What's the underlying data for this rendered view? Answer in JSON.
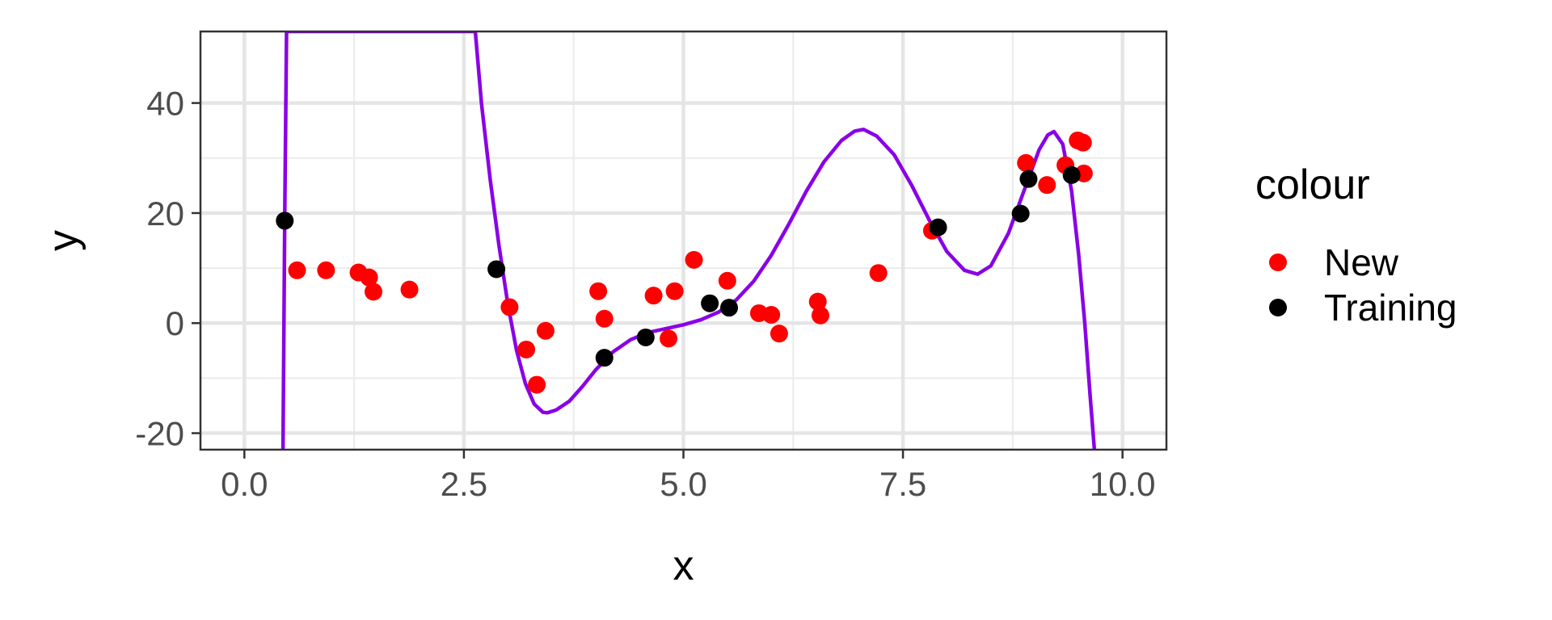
{
  "chart_data": {
    "type": "scatter",
    "title": "",
    "xlabel": "x",
    "ylabel": "y",
    "xlim": [
      -0.5,
      10.5
    ],
    "ylim": [
      -23,
      53
    ],
    "x_ticks": [
      0.0,
      2.5,
      5.0,
      7.5,
      10.0
    ],
    "x_tick_labels": [
      "0.0",
      "2.5",
      "5.0",
      "7.5",
      "10.0"
    ],
    "y_ticks": [
      -20,
      0,
      20,
      40
    ],
    "y_tick_labels": [
      "-20",
      "0",
      "20",
      "40"
    ],
    "grid": true,
    "legend": {
      "title": "colour",
      "position": "right",
      "entries": [
        {
          "label": "New",
          "color": "#ff0000"
        },
        {
          "label": "Training",
          "color": "#000000"
        }
      ]
    },
    "series": [
      {
        "name": "New",
        "color": "#ff0000",
        "points": [
          [
            0.6,
            9.6
          ],
          [
            0.93,
            9.6
          ],
          [
            1.3,
            9.2
          ],
          [
            1.42,
            8.3
          ],
          [
            1.47,
            5.7
          ],
          [
            1.88,
            6.1
          ],
          [
            3.02,
            2.9
          ],
          [
            3.21,
            -4.8
          ],
          [
            3.33,
            -11.2
          ],
          [
            3.43,
            -1.4
          ],
          [
            4.03,
            5.8
          ],
          [
            4.1,
            0.8
          ],
          [
            4.66,
            5.0
          ],
          [
            4.83,
            -2.8
          ],
          [
            4.9,
            5.8
          ],
          [
            5.12,
            11.5
          ],
          [
            5.5,
            7.7
          ],
          [
            5.86,
            1.8
          ],
          [
            6.0,
            1.5
          ],
          [
            6.09,
            -1.9
          ],
          [
            6.53,
            3.9
          ],
          [
            6.56,
            1.4
          ],
          [
            7.22,
            9.1
          ],
          [
            7.83,
            16.8
          ],
          [
            8.9,
            29.1
          ],
          [
            9.14,
            25.1
          ],
          [
            9.35,
            28.7
          ],
          [
            9.49,
            33.2
          ],
          [
            9.55,
            32.8
          ],
          [
            9.56,
            27.2
          ]
        ]
      },
      {
        "name": "Training",
        "color": "#000000",
        "points": [
          [
            0.46,
            18.6
          ],
          [
            2.87,
            9.8
          ],
          [
            4.1,
            -6.3
          ],
          [
            4.57,
            -2.6
          ],
          [
            5.3,
            3.6
          ],
          [
            5.52,
            2.8
          ],
          [
            7.9,
            17.4
          ],
          [
            8.84,
            19.9
          ],
          [
            8.93,
            26.2
          ],
          [
            9.42,
            26.9
          ]
        ]
      }
    ],
    "fitted_curve": {
      "color": "#8a00e6",
      "points": [
        [
          0.44,
          -23
        ],
        [
          0.46,
          20
        ],
        [
          0.48,
          53
        ],
        [
          2.63,
          53
        ],
        [
          2.7,
          40
        ],
        [
          2.8,
          26
        ],
        [
          2.9,
          14
        ],
        [
          3.0,
          3.5
        ],
        [
          3.1,
          -5
        ],
        [
          3.2,
          -11
        ],
        [
          3.3,
          -14.7
        ],
        [
          3.4,
          -16.2
        ],
        [
          3.45,
          -16.3
        ],
        [
          3.55,
          -15.8
        ],
        [
          3.7,
          -14.2
        ],
        [
          3.85,
          -11.5
        ],
        [
          4.0,
          -8.5
        ],
        [
          4.2,
          -5.2
        ],
        [
          4.4,
          -3.0
        ],
        [
          4.6,
          -1.7
        ],
        [
          4.8,
          -1.0
        ],
        [
          5.0,
          -0.3
        ],
        [
          5.2,
          0.6
        ],
        [
          5.4,
          2.0
        ],
        [
          5.6,
          4.2
        ],
        [
          5.8,
          7.6
        ],
        [
          6.0,
          12.3
        ],
        [
          6.2,
          18.0
        ],
        [
          6.4,
          24.0
        ],
        [
          6.6,
          29.3
        ],
        [
          6.8,
          33.2
        ],
        [
          6.95,
          34.9
        ],
        [
          7.05,
          35.2
        ],
        [
          7.2,
          34.0
        ],
        [
          7.4,
          30.6
        ],
        [
          7.6,
          25.0
        ],
        [
          7.8,
          18.7
        ],
        [
          8.0,
          13.0
        ],
        [
          8.2,
          9.6
        ],
        [
          8.35,
          8.9
        ],
        [
          8.5,
          10.4
        ],
        [
          8.7,
          16.3
        ],
        [
          8.9,
          25.0
        ],
        [
          9.05,
          31.5
        ],
        [
          9.15,
          34.2
        ],
        [
          9.22,
          34.8
        ],
        [
          9.32,
          32.5
        ],
        [
          9.42,
          24.0
        ],
        [
          9.5,
          12.5
        ],
        [
          9.57,
          0
        ],
        [
          9.63,
          -13
        ],
        [
          9.68,
          -23
        ]
      ]
    }
  }
}
